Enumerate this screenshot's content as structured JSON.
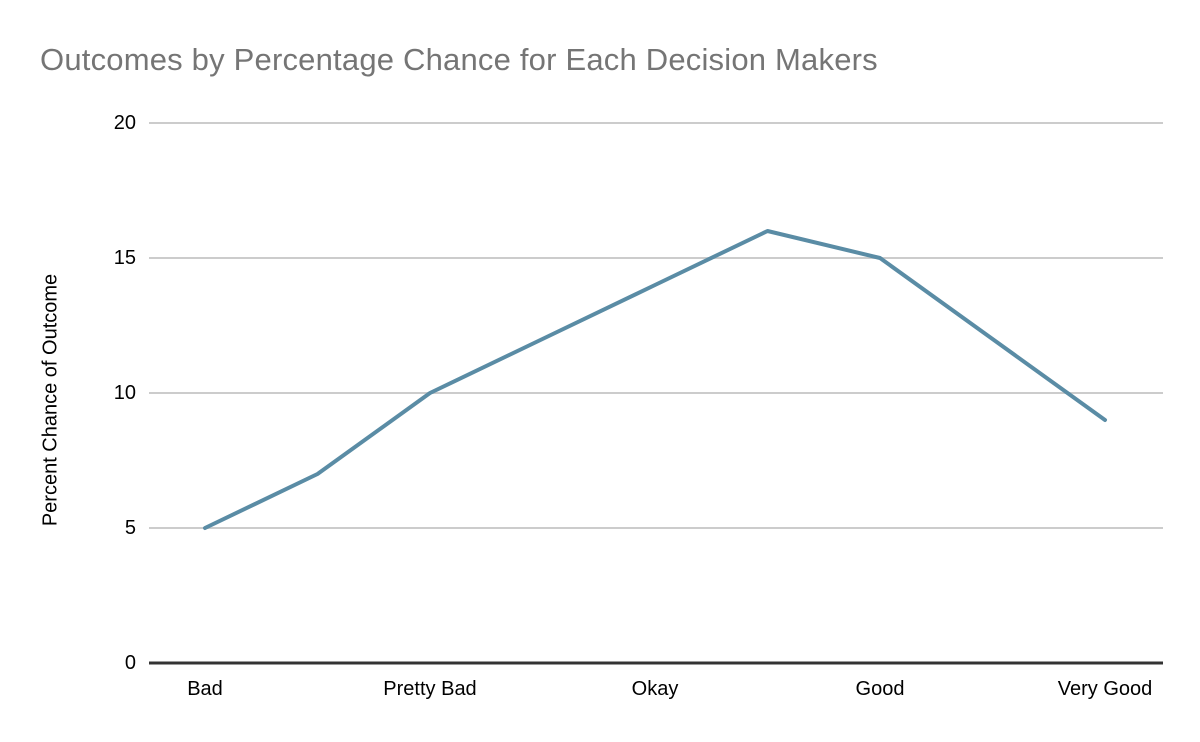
{
  "chart_data": {
    "type": "line",
    "title": "Outcomes by Percentage Chance for Each Decision Makers",
    "ylabel": "Percent Chance of Outcome",
    "xlabel": "",
    "categories": [
      "Bad",
      "",
      "Pretty Bad",
      "",
      "Okay",
      "",
      "Good",
      "",
      "Very Good"
    ],
    "visible_x_labels": [
      "Bad",
      "Pretty Bad",
      "Okay",
      "Good",
      "Very Good"
    ],
    "series": [
      {
        "values": [
          5,
          7,
          10,
          12,
          14,
          16,
          15,
          12,
          9
        ]
      }
    ],
    "ylim": [
      0,
      20
    ],
    "yticks": [
      0,
      5,
      10,
      15,
      20
    ],
    "ytick_labels": [
      "0",
      "5",
      "10",
      "15",
      "20"
    ],
    "grid": true,
    "legend": "none",
    "colors": {
      "line": "#5a8ca5",
      "grid": "#cccccc",
      "axis": "#333333",
      "title": "#757575",
      "tick_text": "#000000",
      "background": "#ffffff"
    }
  }
}
